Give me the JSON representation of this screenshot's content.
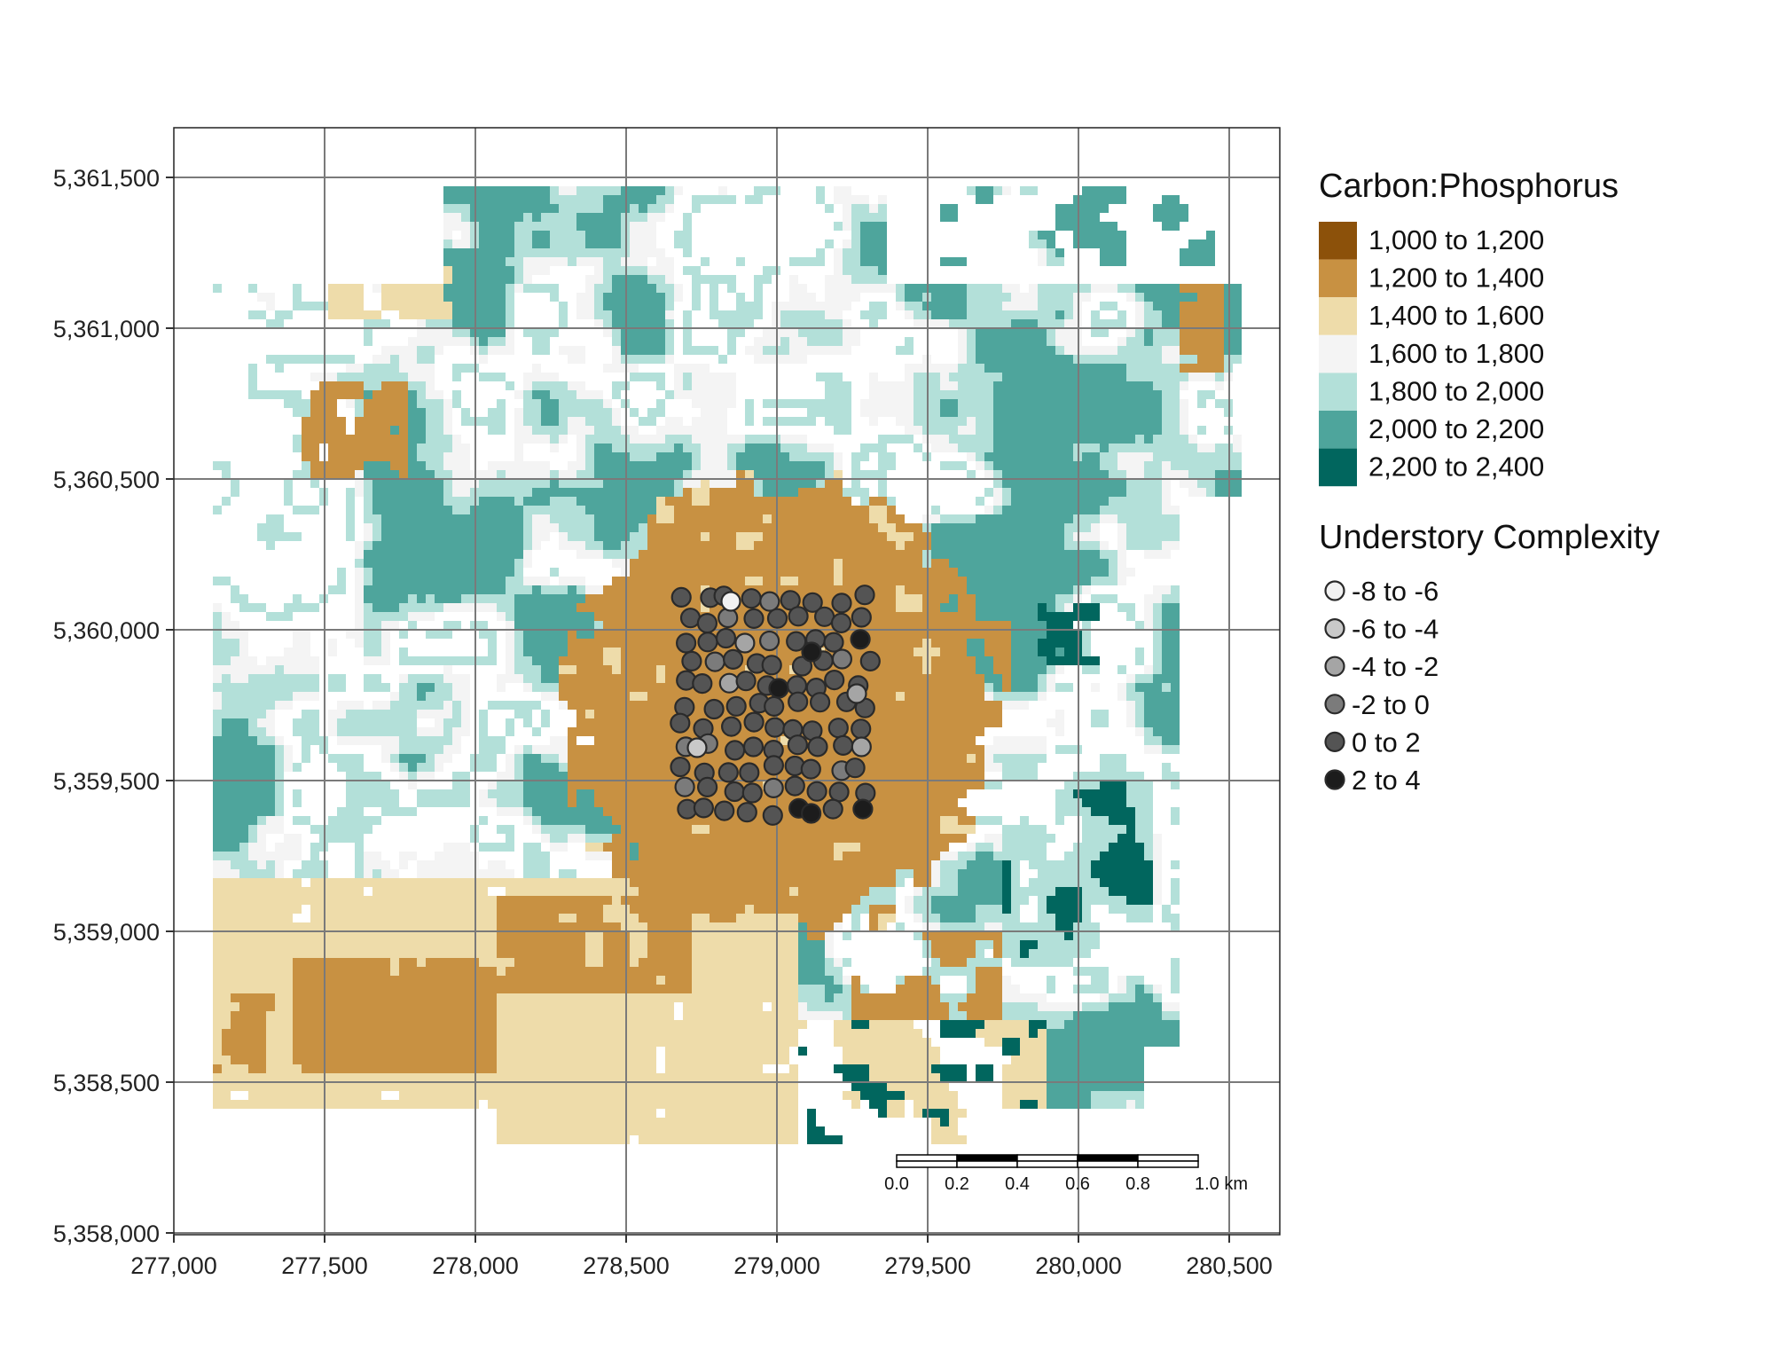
{
  "chart_data": {
    "type": "map",
    "x_ticks": [
      "277,000",
      "277,500",
      "278,000",
      "278,500",
      "279,000",
      "279,500",
      "280,000",
      "280,500"
    ],
    "x_tick_values": [
      277000,
      277500,
      278000,
      278500,
      279000,
      279500,
      280000,
      280500
    ],
    "y_ticks": [
      "5,361,500",
      "5,361,000",
      "5,360,500",
      "5,360,000",
      "5,359,500",
      "5,359,000",
      "5,358,500",
      "5,358,000"
    ],
    "y_tick_values": [
      5361500,
      5361000,
      5360500,
      5360000,
      5359500,
      5359000,
      5358500,
      5358000
    ],
    "xlim": [
      277000,
      280500
    ],
    "ylim": [
      5358000,
      5361650
    ],
    "grid": true,
    "raster": {
      "title": "Carbon:Phosphorus",
      "classes": [
        {
          "label": "1,000 to 1,200",
          "color": "#8c510a"
        },
        {
          "label": "1,200 to 1,400",
          "color": "#c89142"
        },
        {
          "label": "1,400 to 1,600",
          "color": "#eedcaa"
        },
        {
          "label": "1,600 to 1,800",
          "color": "#f4f4f4"
        },
        {
          "label": "1,800 to 2,000",
          "color": "#b3e0d9"
        },
        {
          "label": "2,000 to 2,200",
          "color": "#4ea59c"
        },
        {
          "label": "2,200 to 2,400",
          "color": "#01665e"
        }
      ]
    },
    "points": {
      "title": "Understory Complexity",
      "classes": [
        {
          "label": "-8 to -6",
          "color": "#f2f2f2"
        },
        {
          "label": "-6 to -4",
          "color": "#c9c9c9"
        },
        {
          "label": "-4 to -2",
          "color": "#a5a5a5"
        },
        {
          "label": "-2 to 0",
          "color": "#7b7b7b"
        },
        {
          "label": "0 to 2",
          "color": "#545454"
        },
        {
          "label": "2 to 4",
          "color": "#1c1c1c"
        }
      ]
    },
    "scale_bar": {
      "labels": [
        "0.0",
        "0.2",
        "0.4",
        "0.6",
        "0.8",
        "1.0 km"
      ],
      "position": "bottom-right"
    },
    "legend_position": "right"
  }
}
